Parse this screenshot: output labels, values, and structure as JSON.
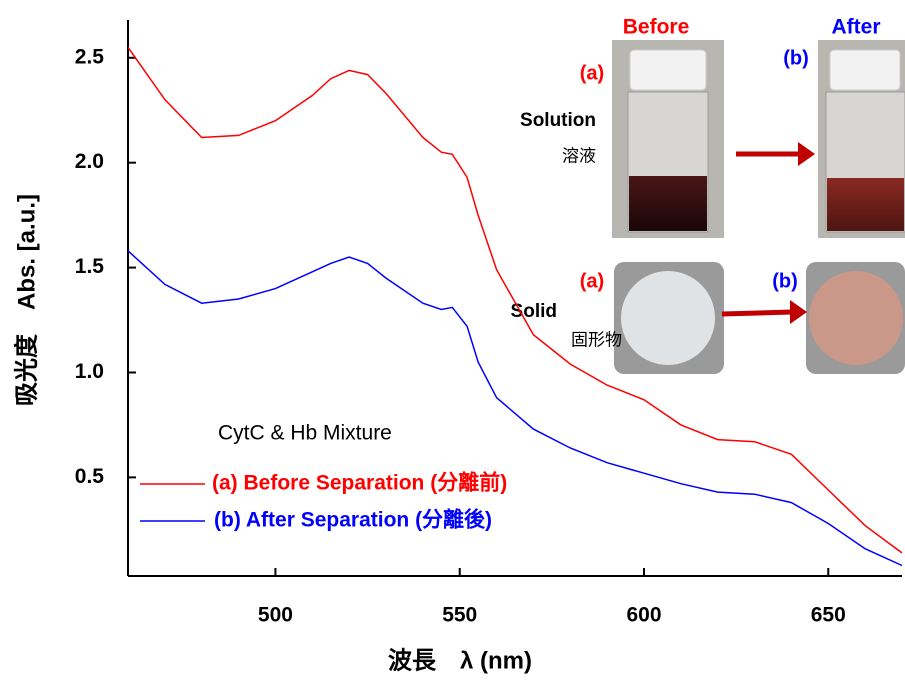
{
  "chart_data": {
    "type": "line",
    "x": [
      460,
      470,
      480,
      490,
      500,
      510,
      515,
      520,
      525,
      530,
      540,
      545,
      548,
      552,
      555,
      560,
      570,
      580,
      590,
      600,
      610,
      620,
      630,
      640,
      650,
      660,
      670
    ],
    "series": [
      {
        "name": "(a) Before Separation (分離前)",
        "color": "#ff0000",
        "values": [
          2.55,
          2.3,
          2.12,
          2.13,
          2.2,
          2.32,
          2.4,
          2.44,
          2.42,
          2.33,
          2.12,
          2.05,
          2.04,
          1.93,
          1.75,
          1.49,
          1.18,
          1.04,
          0.94,
          0.87,
          0.75,
          0.68,
          0.67,
          0.61,
          0.44,
          0.27,
          0.14
        ]
      },
      {
        "name": "(b) After Separation (分離後)",
        "color": "#0000ff",
        "values": [
          1.58,
          1.42,
          1.33,
          1.35,
          1.4,
          1.48,
          1.52,
          1.55,
          1.52,
          1.45,
          1.33,
          1.3,
          1.31,
          1.22,
          1.05,
          0.88,
          0.73,
          0.64,
          0.57,
          0.52,
          0.47,
          0.43,
          0.42,
          0.38,
          0.28,
          0.16,
          0.08
        ]
      }
    ],
    "xlim": [
      460,
      670
    ],
    "xticks": [
      500,
      550,
      600,
      650
    ],
    "ylim": [
      0.03,
      2.68
    ],
    "yticks": [
      0.5,
      {
        "value": 1,
        "label": "1.0"
      },
      1.5,
      {
        "value": 2,
        "label": "2.0"
      },
      2.5
    ],
    "xlabel": "波長　λ (nm)",
    "ylabel": "吸光度　Abs. [a.u.]",
    "legend_title": "CytC & Hb Mixture",
    "inset": {
      "before": "Before",
      "after": "After",
      "a1": "(a)",
      "b1": "(b)",
      "a2": "(a)",
      "b2": "(b)",
      "solution": "Solution",
      "solution_jp": "溶液",
      "solid": "Solid",
      "solid_jp": "固形物"
    }
  }
}
